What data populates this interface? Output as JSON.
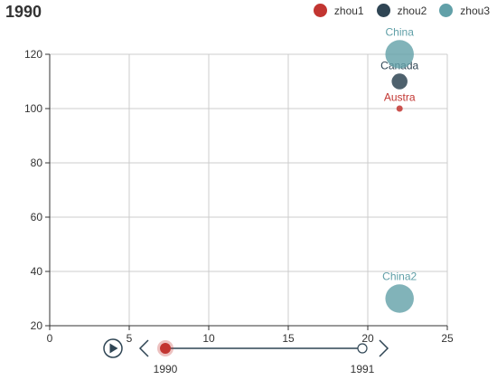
{
  "chart_data": {
    "type": "scatter",
    "title": "1990",
    "xlim": [
      0,
      25
    ],
    "ylim": [
      20,
      120
    ],
    "x_ticks": [
      0,
      5,
      10,
      15,
      20,
      25
    ],
    "y_ticks": [
      20,
      40,
      60,
      80,
      100,
      120
    ],
    "grid": true,
    "legend_position": "top-right",
    "series": [
      {
        "name": "zhou1",
        "color": "#c23531",
        "points": [
          {
            "label": "Austra",
            "x": 22,
            "y": 100,
            "size": 1
          }
        ]
      },
      {
        "name": "zhou2",
        "color": "#2f4554",
        "points": [
          {
            "label": "Canada",
            "x": 22,
            "y": 110,
            "size": 2.5
          }
        ]
      },
      {
        "name": "zhou3",
        "color": "#61a0a8",
        "points": [
          {
            "label": "China",
            "x": 22,
            "y": 120,
            "size": 4.5
          },
          {
            "label": "China2",
            "x": 22,
            "y": 30,
            "size": 4.5
          }
        ]
      }
    ],
    "timeline": {
      "items": [
        "1990",
        "1991"
      ],
      "current": "1990",
      "accent_color": "#c23531",
      "line_color": "#2f4554"
    }
  }
}
